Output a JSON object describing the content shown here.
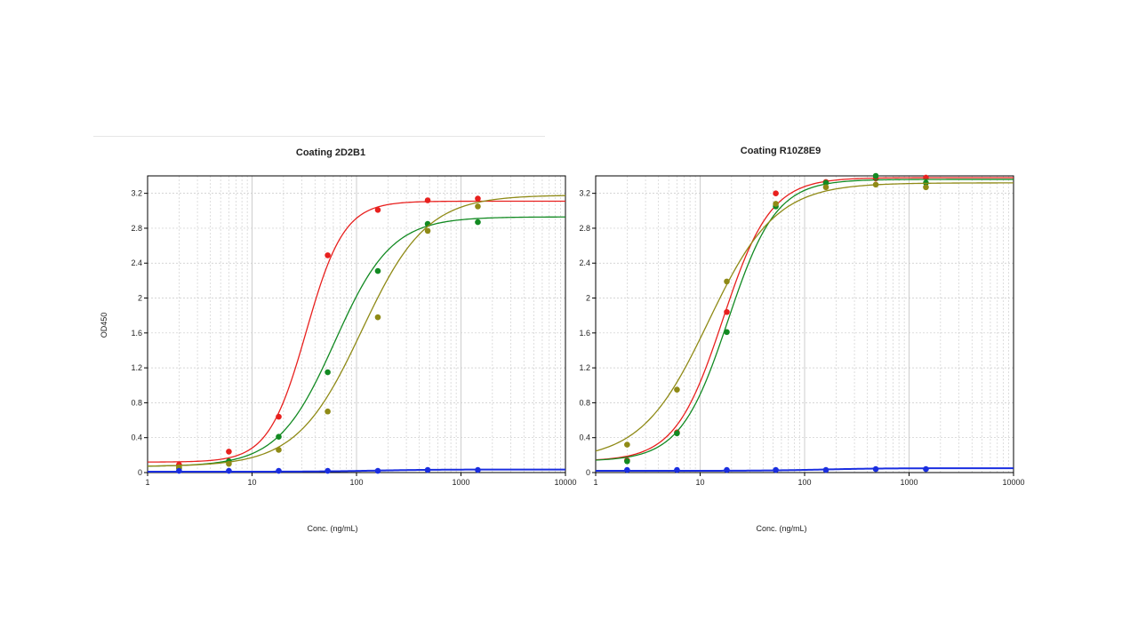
{
  "colors": {
    "red": "#e8201e",
    "green": "#128a22",
    "olive": "#8f8a16",
    "blue": "#1a2ee0",
    "grid": "#c8c8c8",
    "frame": "#000000"
  },
  "chart_data": [
    {
      "type": "scatter",
      "title": "Coating 2D2B1",
      "xlabel": "Conc. (ng/mL)",
      "ylabel": "OD450",
      "xscale": "log",
      "xlim": [
        1,
        10000
      ],
      "ylim": [
        0,
        3.4
      ],
      "xticks": [
        "1",
        "10",
        "100",
        "1000",
        "10000"
      ],
      "yticks": [
        "0",
        "0.4",
        "0.8",
        "1.2",
        "1.6",
        "2",
        "2.4",
        "2.8",
        "3.2"
      ],
      "grid": true,
      "series": [
        {
          "color": "red",
          "x": [
            2,
            6,
            18,
            53,
            160,
            480,
            1450
          ],
          "y": [
            0.09,
            0.24,
            0.64,
            2.49,
            3.01,
            3.12,
            3.14
          ],
          "fit": {
            "bottom": 0.12,
            "top": 3.11,
            "ec50": 33,
            "hill": 2.4
          }
        },
        {
          "color": "green",
          "x": [
            2,
            6,
            18,
            53,
            160,
            480,
            1450
          ],
          "y": [
            0.05,
            0.13,
            0.41,
            1.15,
            2.31,
            2.85,
            2.87
          ],
          "fit": {
            "bottom": 0.07,
            "top": 2.93,
            "ec50": 62,
            "hill": 1.6
          }
        },
        {
          "color": "olive",
          "x": [
            2,
            6,
            18,
            53,
            160,
            480,
            1450
          ],
          "y": [
            0.06,
            0.1,
            0.26,
            0.7,
            1.78,
            2.77,
            3.05
          ],
          "fit": {
            "bottom": 0.07,
            "top": 3.18,
            "ec50": 112,
            "hill": 1.4
          }
        },
        {
          "color": "blue",
          "x": [
            2,
            6,
            18,
            53,
            160,
            480,
            1450
          ],
          "y": [
            0.02,
            0.02,
            0.02,
            0.02,
            0.02,
            0.03,
            0.03
          ],
          "fit": {
            "bottom": 0.01,
            "top": 0.035,
            "ec50": 150,
            "hill": 1.5
          }
        }
      ]
    },
    {
      "type": "scatter",
      "title": "Coating R10Z8E9",
      "xlabel": "Conc. (ng/mL)",
      "ylabel": "",
      "xscale": "log",
      "xlim": [
        1,
        10000
      ],
      "ylim": [
        0,
        3.4
      ],
      "xticks": [
        "1",
        "10",
        "100",
        "1000",
        "10000"
      ],
      "yticks": [
        "0",
        "0.4",
        "0.8",
        "1.2",
        "1.6",
        "2",
        "2.4",
        "2.8",
        "3.2"
      ],
      "grid": true,
      "series": [
        {
          "color": "red",
          "x": [
            2,
            6,
            18,
            53,
            160,
            480,
            1450
          ],
          "y": [
            0.14,
            0.46,
            1.84,
            3.2,
            3.33,
            3.37,
            3.38
          ],
          "fit": {
            "bottom": 0.13,
            "top": 3.38,
            "ec50": 16.5,
            "hill": 1.9
          }
        },
        {
          "color": "green",
          "x": [
            2,
            6,
            18,
            53,
            160,
            480,
            1450
          ],
          "y": [
            0.13,
            0.45,
            1.61,
            3.05,
            3.32,
            3.4,
            3.32
          ],
          "fit": {
            "bottom": 0.13,
            "top": 3.36,
            "ec50": 18.5,
            "hill": 1.9
          }
        },
        {
          "color": "olive",
          "x": [
            2,
            6,
            18,
            53,
            160,
            480,
            1450
          ],
          "y": [
            0.32,
            0.95,
            2.19,
            3.08,
            3.27,
            3.3,
            3.27
          ],
          "fit": {
            "bottom": 0.14,
            "top": 3.32,
            "ec50": 12,
            "hill": 1.35
          }
        },
        {
          "color": "blue",
          "x": [
            2,
            6,
            18,
            53,
            160,
            480,
            1450
          ],
          "y": [
            0.03,
            0.03,
            0.03,
            0.03,
            0.03,
            0.04,
            0.04
          ],
          "fit": {
            "bottom": 0.02,
            "top": 0.05,
            "ec50": 150,
            "hill": 1.5
          }
        }
      ]
    }
  ]
}
